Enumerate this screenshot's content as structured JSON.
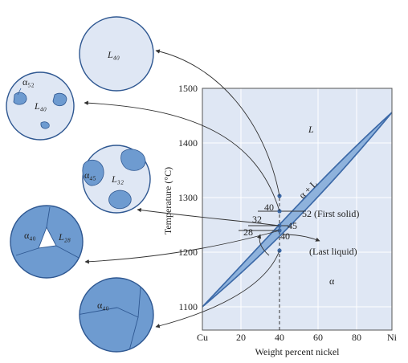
{
  "diagram": {
    "x_axis": {
      "label": "Weight percent nickel",
      "ticks": [
        "Cu",
        "20",
        "40",
        "60",
        "80",
        "Ni"
      ]
    },
    "y_axis": {
      "label": "Temperature (°C)",
      "ticks": [
        "1100",
        "1200",
        "1300",
        "1400",
        "1500"
      ]
    },
    "regions": {
      "liquid": "L",
      "two_phase": "α + L",
      "solid": "α"
    },
    "annotations": {
      "c40": "40",
      "c32": "32",
      "c28": "28",
      "c52": "52 (First solid)",
      "c45": "45",
      "c40b": "40",
      "last_liquid": "(Last liquid)"
    },
    "microstructures": {
      "m1_liquid": "L₄₀",
      "m2_alpha": "α₅₂",
      "m2_liquid": "L₄₀",
      "m3_alpha": "α₄₅",
      "m3_liquid": "L₃₂",
      "m4_alpha": "α₄₀",
      "m4_liquid": "L₂₈",
      "m5_alpha": "α₄₀"
    },
    "colors": {
      "plot_bg": "#dfe7f4",
      "two_phase_fill": "#8eb2dc",
      "curve": "#3d6aa8",
      "solid_grain": "#6e9bd0",
      "liquid_bg": "#dfe7f4",
      "grain_boundary": "#2e5791"
    }
  }
}
